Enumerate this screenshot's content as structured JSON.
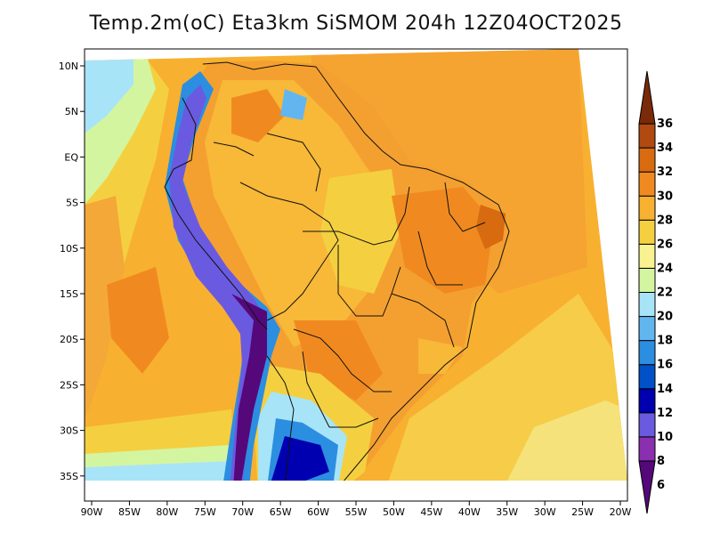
{
  "title": "Temp.2m(oC) Eta3km SiSMOM 204h 12Z04OCT2025",
  "map": {
    "lat_ticks": [
      {
        "lat": 10,
        "label": "10N"
      },
      {
        "lat": 5,
        "label": "5N"
      },
      {
        "lat": 0,
        "label": "EQ"
      },
      {
        "lat": -5,
        "label": "5S"
      },
      {
        "lat": -10,
        "label": "10S"
      },
      {
        "lat": -15,
        "label": "15S"
      },
      {
        "lat": -20,
        "label": "20S"
      },
      {
        "lat": -25,
        "label": "25S"
      },
      {
        "lat": -30,
        "label": "30S"
      },
      {
        "lat": -35,
        "label": "35S"
      }
    ],
    "lon_ticks": [
      {
        "lon": -90,
        "label": "90W"
      },
      {
        "lon": -85,
        "label": "85W"
      },
      {
        "lon": -80,
        "label": "80W"
      },
      {
        "lon": -75,
        "label": "75W"
      },
      {
        "lon": -70,
        "label": "70W"
      },
      {
        "lon": -65,
        "label": "65W"
      },
      {
        "lon": -60,
        "label": "60W"
      },
      {
        "lon": -55,
        "label": "55W"
      },
      {
        "lon": -50,
        "label": "50W"
      },
      {
        "lon": -45,
        "label": "45W"
      },
      {
        "lon": -40,
        "label": "40W"
      },
      {
        "lon": -35,
        "label": "35W"
      },
      {
        "lon": -30,
        "label": "30W"
      },
      {
        "lon": -25,
        "label": "25W"
      },
      {
        "lon": -20,
        "label": "20W"
      }
    ],
    "lon_range": [
      -90,
      -20
    ],
    "lat_range": [
      -38,
      12
    ]
  },
  "colorbar": {
    "labels": [
      "6",
      "8",
      "10",
      "12",
      "14",
      "16",
      "18",
      "20",
      "22",
      "24",
      "26",
      "28",
      "30",
      "32",
      "34",
      "36"
    ],
    "colors": [
      "#55087a",
      "#8a2fb0",
      "#6a5ae0",
      "#0000b0",
      "#0050c8",
      "#2c8ee0",
      "#62b6f0",
      "#a8e4f8",
      "#d4f5a0",
      "#f8f290",
      "#f4d040",
      "#f8b030",
      "#f08a20",
      "#d86a10",
      "#b04a10",
      "#7a2a08"
    ]
  }
}
